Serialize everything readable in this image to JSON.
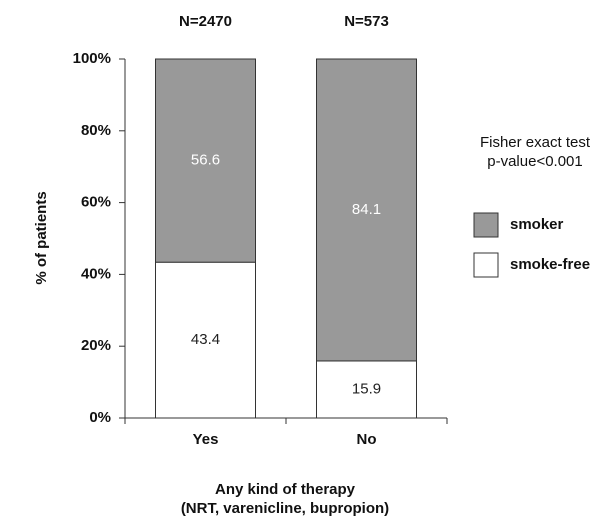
{
  "chart_data": {
    "type": "stacked_bar",
    "categories": [
      "Yes",
      "No"
    ],
    "category_annotations": [
      "N=2470",
      "N=573"
    ],
    "series": [
      {
        "name": "smoke-free",
        "color": "#ffffff",
        "values": [
          43.4,
          15.9
        ]
      },
      {
        "name": "smoker",
        "color": "#999999",
        "values": [
          56.6,
          84.1
        ]
      }
    ],
    "ylabel": "% of patients",
    "xlabel": [
      "Any kind of therapy",
      "(NRT, varenicline, bupropion)"
    ],
    "annotation": [
      "Fisher exact test",
      "p-value<0.001"
    ],
    "ylim": [
      0,
      100
    ],
    "yticks": [
      {
        "value": 0,
        "label": "0%"
      },
      {
        "value": 20,
        "label": "20%"
      },
      {
        "value": 40,
        "label": "40%"
      },
      {
        "value": 60,
        "label": "60%"
      },
      {
        "value": 80,
        "label": "80%"
      },
      {
        "value": 100,
        "label": "100%"
      }
    ]
  }
}
